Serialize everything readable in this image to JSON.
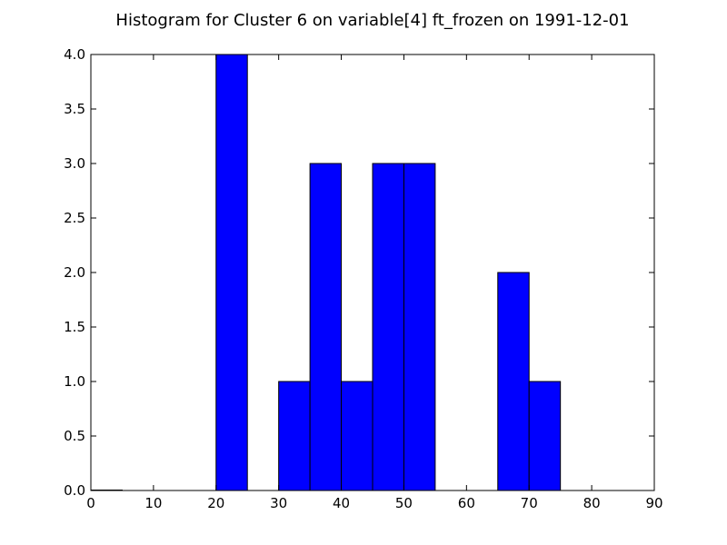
{
  "chart_data": {
    "type": "bar",
    "title": "Histogram for Cluster 6 on variable[4] ft_frozen on 1991-12-01",
    "xlabel": "",
    "ylabel": "",
    "xlim": [
      0,
      90
    ],
    "ylim": [
      0,
      4.0
    ],
    "x_ticks": [
      "0",
      "10",
      "20",
      "30",
      "40",
      "50",
      "60",
      "70",
      "80",
      "90"
    ],
    "y_ticks": [
      "0.0",
      "0.5",
      "1.0",
      "1.5",
      "2.0",
      "2.5",
      "3.0",
      "3.5",
      "4.0"
    ],
    "bin_width": 5,
    "bins": [
      {
        "start": 0,
        "end": 5,
        "count": 0
      },
      {
        "start": 20,
        "end": 25,
        "count": 4
      },
      {
        "start": 30,
        "end": 35,
        "count": 1
      },
      {
        "start": 35,
        "end": 40,
        "count": 3
      },
      {
        "start": 40,
        "end": 45,
        "count": 1
      },
      {
        "start": 45,
        "end": 50,
        "count": 3
      },
      {
        "start": 50,
        "end": 55,
        "count": 3
      },
      {
        "start": 65,
        "end": 70,
        "count": 2
      },
      {
        "start": 70,
        "end": 75,
        "count": 1
      }
    ],
    "bar_color": "#0000ff",
    "grid": false,
    "legend": "none"
  }
}
